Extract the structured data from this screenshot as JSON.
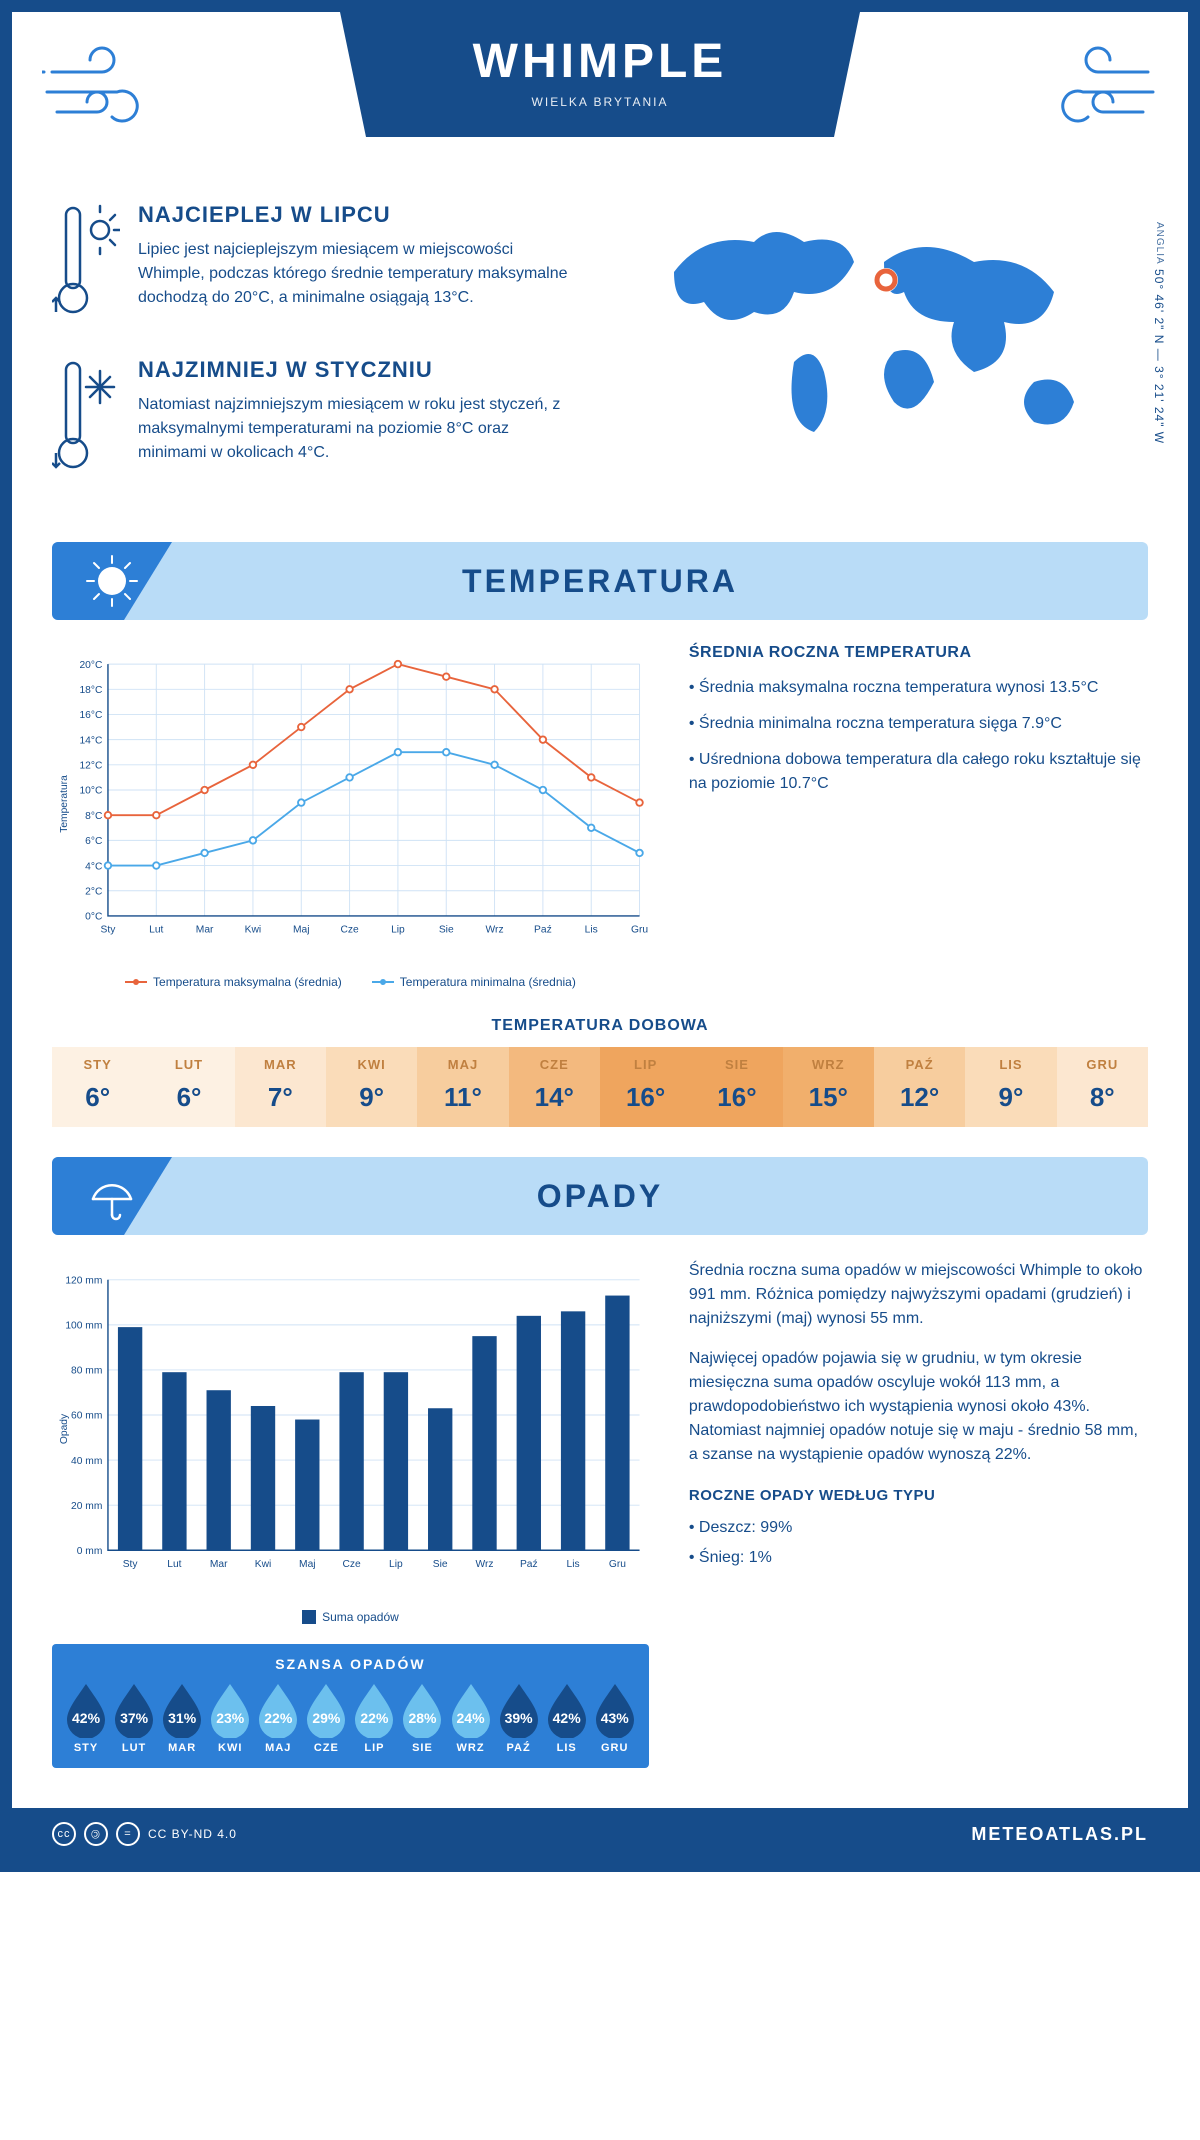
{
  "header": {
    "title": "WHIMPLE",
    "subtitle": "WIELKA BRYTANIA"
  },
  "coords": {
    "text": "50° 46' 2\" N — 3° 21' 24\" W",
    "region": "ANGLIA"
  },
  "facts": {
    "hot": {
      "title": "NAJCIEPLEJ W LIPCU",
      "body": "Lipiec jest najcieplejszym miesiącem w miejscowości Whimple, podczas którego średnie temperatury maksymalne dochodzą do 20°C, a minimalne osiągają 13°C."
    },
    "cold": {
      "title": "NAJZIMNIEJ W STYCZNIU",
      "body": "Natomiast najzimniejszym miesiącem w roku jest styczeń, z maksymalnymi temperaturami na poziomie 8°C oraz minimami w okolicach 4°C."
    }
  },
  "months": [
    "Sty",
    "Lut",
    "Mar",
    "Kwi",
    "Maj",
    "Cze",
    "Lip",
    "Sie",
    "Wrz",
    "Paź",
    "Lis",
    "Gru"
  ],
  "months_upper": [
    "STY",
    "LUT",
    "MAR",
    "KWI",
    "MAJ",
    "CZE",
    "LIP",
    "SIE",
    "WRZ",
    "PAŹ",
    "LIS",
    "GRU"
  ],
  "temperature": {
    "section_title": "TEMPERATURA",
    "chart": {
      "type": "line",
      "y_label": "Temperatura",
      "ylim": [
        0,
        20
      ],
      "ytick_step": 2,
      "ytick_suffix": "°C",
      "series": [
        {
          "name": "Temperatura maksymalna (średnia)",
          "color": "#e8643c",
          "values": [
            8,
            8,
            10,
            12,
            15,
            18,
            20,
            19,
            18,
            14,
            11,
            9
          ]
        },
        {
          "name": "Temperatura minimalna (średnia)",
          "color": "#4aa8e8",
          "values": [
            4,
            4,
            5,
            6,
            9,
            11,
            13,
            13,
            12,
            10,
            7,
            5
          ]
        }
      ],
      "grid_color": "#cfe2f5",
      "background_color": "#ffffff",
      "line_width": 2,
      "marker": "circle",
      "marker_size": 5
    },
    "summary": {
      "title": "ŚREDNIA ROCZNA TEMPERATURA",
      "bullets": [
        "Średnia maksymalna roczna temperatura wynosi 13.5°C",
        "Średnia minimalna roczna temperatura sięga 7.9°C",
        "Uśredniona dobowa temperatura dla całego roku kształtuje się na poziomie 10.7°C"
      ]
    },
    "daily": {
      "title": "TEMPERATURA DOBOWA",
      "values": [
        6,
        6,
        7,
        9,
        11,
        14,
        16,
        16,
        15,
        12,
        9,
        8
      ],
      "unit": "°",
      "colors": [
        "#fdf1e3",
        "#fdf1e3",
        "#fce7d0",
        "#fadcb9",
        "#f7cd9e",
        "#f3b97e",
        "#efa55e",
        "#efa55e",
        "#f1af6c",
        "#f7cd9e",
        "#fadcb9",
        "#fce7d0"
      ],
      "month_text_color": "#c08040",
      "value_text_color": "#164c8a"
    }
  },
  "precip": {
    "section_title": "OPADY",
    "chart": {
      "type": "bar",
      "y_label": "Opady",
      "ylim": [
        0,
        120
      ],
      "ytick_step": 20,
      "ytick_suffix": " mm",
      "bar_color": "#164c8a",
      "grid_color": "#cfe2f5",
      "legend": "Suma opadów",
      "values": [
        99,
        79,
        71,
        64,
        58,
        79,
        79,
        63,
        95,
        104,
        106,
        113
      ]
    },
    "text": {
      "p1": "Średnia roczna suma opadów w miejscowości Whimple to około 991 mm. Różnica pomiędzy najwyższymi opadami (grudzień) i najniższymi (maj) wynosi 55 mm.",
      "p2": "Najwięcej opadów pojawia się w grudniu, w tym okresie miesięczna suma opadów oscyluje wokół 113 mm, a prawdopodobieństwo ich wystąpienia wynosi około 43%. Natomiast najmniej opadów notuje się w maju - średnio 58 mm, a szanse na wystąpienie opadów wynoszą 22%."
    },
    "chance": {
      "title": "SZANSA OPADÓW",
      "values": [
        42,
        37,
        31,
        23,
        22,
        29,
        22,
        28,
        24,
        39,
        42,
        43
      ],
      "suffix": "%",
      "drop_fill_low": "#6cc0ee",
      "drop_fill_high": "#164c8a",
      "threshold": 30,
      "bg_color": "#2d7fd6"
    },
    "by_type": {
      "title": "ROCZNE OPADY WEDŁUG TYPU",
      "items": [
        "Deszcz: 99%",
        "Śnieg: 1%"
      ]
    }
  },
  "footer": {
    "license": "CC BY-ND 4.0",
    "site": "METEOATLAS.PL"
  },
  "palette": {
    "primary": "#164c8a",
    "light_blue": "#b9dcf7",
    "mid_blue": "#2d7fd6"
  }
}
